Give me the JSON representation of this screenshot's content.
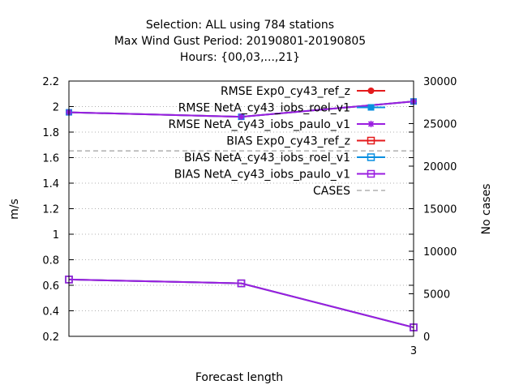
{
  "chart_data": {
    "type": "line",
    "title_lines": [
      "Selection: ALL using   784 stations",
      "Max Wind Gust   Period: 20190801-20190805",
      "Hours: {00,03,...,21}"
    ],
    "xlabel": "Forecast length",
    "ylabel": "m/s",
    "y2label": "No cases",
    "x_ticks": [
      "3"
    ],
    "x_tick_values": [
      3
    ],
    "xlim": [
      0,
      3
    ],
    "ylim": [
      0.2,
      2.2
    ],
    "y_ticks": [
      "0.2",
      "0.4",
      "0.6",
      "0.8",
      "1",
      "1.2",
      "1.4",
      "1.6",
      "1.8",
      "2",
      "2.2"
    ],
    "y2lim": [
      0,
      30000
    ],
    "y2_ticks": [
      "0",
      "5000",
      "10000",
      "15000",
      "20000",
      "25000",
      "30000"
    ],
    "grid": true,
    "legend_position": "top-right",
    "series": [
      {
        "name": "RMSE Exp0_cy43_ref_z",
        "color": "#e41a1c",
        "marker": "filled-circle",
        "axis": "y",
        "x": [
          0,
          1.5,
          3
        ],
        "values": [
          1.955,
          1.92,
          2.04
        ]
      },
      {
        "name": "RMSE NetA_cy43_iobs_roel_v1",
        "color": "#0a8fe0",
        "marker": "filled-square",
        "axis": "y",
        "x": [
          0,
          1.5,
          3
        ],
        "values": [
          1.955,
          1.92,
          2.04
        ]
      },
      {
        "name": "RMSE NetA_cy43_iobs_paulo_v1",
        "color": "#9a1ee0",
        "marker": "star",
        "axis": "y",
        "x": [
          0,
          1.5,
          3
        ],
        "values": [
          1.955,
          1.92,
          2.04
        ]
      },
      {
        "name": "BIAS Exp0_cy43_ref_z",
        "color": "#e41a1c",
        "marker": "open-square",
        "axis": "y",
        "x": [
          0,
          1.5,
          3
        ],
        "values": [
          0.645,
          0.615,
          0.27
        ]
      },
      {
        "name": "BIAS NetA_cy43_iobs_roel_v1",
        "color": "#0a8fe0",
        "marker": "open-square",
        "axis": "y",
        "x": [
          0,
          1.5,
          3
        ],
        "values": [
          0.645,
          0.615,
          0.27
        ]
      },
      {
        "name": "BIAS NetA_cy43_iobs_paulo_v1",
        "color": "#9a1ee0",
        "marker": "open-square",
        "axis": "y",
        "x": [
          0,
          1.5,
          3
        ],
        "values": [
          0.645,
          0.615,
          0.27
        ]
      },
      {
        "name": "CASES",
        "color": "#888888",
        "marker": "none",
        "dashed": true,
        "axis": "y2",
        "x": [
          0,
          1.5,
          3
        ],
        "values": [
          21800,
          21800,
          21800
        ]
      }
    ]
  }
}
